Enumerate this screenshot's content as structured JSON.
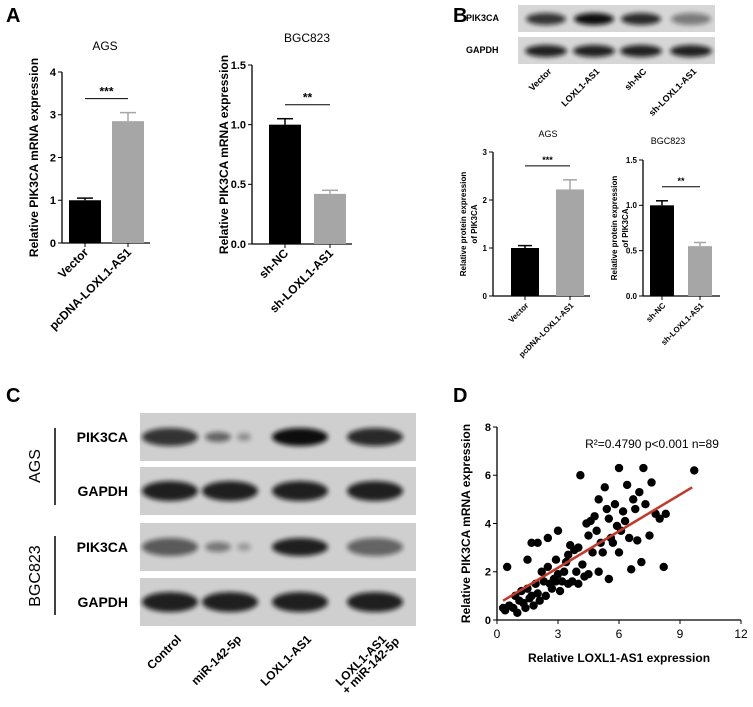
{
  "panel_labels": [
    "A",
    "B",
    "C",
    "D"
  ],
  "blot_b": {
    "rows": [
      "PIK3CA",
      "GAPDH"
    ],
    "lanes": [
      "Vector",
      "LOXL1-AS1",
      "sh-NC",
      "sh-LOXL1-AS1"
    ]
  },
  "blot_c": {
    "groups": [
      "AGS",
      "BGC823"
    ],
    "rows": [
      "PIK3CA",
      "GAPDH",
      "PIK3CA",
      "GAPDH"
    ],
    "lanes": [
      [
        "Control"
      ],
      [
        "miR-142-5p"
      ],
      [
        "LOXL1-AS1"
      ],
      [
        "LOXL1-AS1",
        "+ miR-142-5p"
      ]
    ]
  },
  "chart_data": [
    {
      "type": "bar",
      "title": "AGS",
      "ylabel": [
        "Relative PIK3CA mRNA expression"
      ],
      "categories": [
        "Vector",
        "pcDNA-LOXL1-AS1"
      ],
      "values": [
        1.0,
        2.85
      ],
      "errors": [
        0.05,
        0.2
      ],
      "colors": [
        "#000000",
        "#a6a6a6"
      ],
      "annotation": "***",
      "ylim": [
        0,
        4
      ],
      "yticks": [
        0,
        1,
        2,
        3,
        4
      ]
    },
    {
      "type": "bar",
      "title": "BGC823",
      "ylabel": [
        "Relative PIK3CA mRNA expression"
      ],
      "categories": [
        "sh-NC",
        "sh-LOXL1-AS1"
      ],
      "values": [
        1.0,
        0.42
      ],
      "errors": [
        0.05,
        0.03
      ],
      "colors": [
        "#000000",
        "#a6a6a6"
      ],
      "annotation": "**",
      "ylim": [
        0,
        1.5
      ],
      "yticks": [
        {
          "value": 0,
          "label": "0.0"
        },
        0.5,
        {
          "value": 1,
          "label": "1.0"
        },
        1.5
      ]
    },
    {
      "type": "bar",
      "title": "AGS",
      "ylabel": [
        "Relative protein expression",
        "of PIK3CA"
      ],
      "categories": [
        "Vector",
        "pcDNA-LOXL1-AS1"
      ],
      "values": [
        1.0,
        2.22
      ],
      "errors": [
        0.05,
        0.2
      ],
      "colors": [
        "#000000",
        "#a6a6a6"
      ],
      "annotation": "***",
      "ylim": [
        0,
        3
      ],
      "yticks": [
        0,
        1,
        2,
        3
      ]
    },
    {
      "type": "bar",
      "title": "BGC823",
      "ylabel": [
        "Relative protein expression",
        "of PIK3CA"
      ],
      "categories": [
        "sh-NC",
        "sh-LOXL1-AS1"
      ],
      "values": [
        1.0,
        0.55
      ],
      "errors": [
        0.05,
        0.04
      ],
      "colors": [
        "#000000",
        "#a6a6a6"
      ],
      "annotation": "**",
      "ylim": [
        0,
        1.5
      ],
      "yticks": [
        {
          "value": 0,
          "label": "0.0"
        },
        0.5,
        {
          "value": 1,
          "label": "1.0"
        },
        1.5
      ]
    },
    {
      "type": "scatter",
      "xlabel": "Relative LOXL1-AS1 expression",
      "ylabel": [
        "Relative PIK3CA mRNA expression"
      ],
      "annotation": "R²=0.4790  p<0.001  n=89",
      "color": "#000000",
      "x": [
        0.3,
        0.4,
        0.5,
        0.6,
        0.8,
        0.9,
        1.0,
        1.1,
        1.2,
        1.3,
        1.4,
        1.5,
        1.5,
        1.6,
        1.7,
        1.8,
        1.9,
        2.0,
        2.0,
        2.1,
        2.2,
        2.3,
        2.4,
        2.5,
        2.5,
        2.6,
        2.7,
        2.8,
        2.9,
        3.0,
        3.0,
        3.1,
        3.2,
        3.3,
        3.4,
        3.5,
        3.5,
        3.6,
        3.7,
        3.8,
        3.9,
        4.0,
        4.0,
        4.1,
        4.2,
        4.3,
        4.4,
        4.5,
        4.5,
        4.6,
        4.7,
        4.8,
        4.9,
        5.0,
        5.0,
        5.1,
        5.2,
        5.3,
        5.4,
        5.5,
        5.5,
        5.6,
        5.7,
        5.8,
        5.9,
        6.0,
        6.0,
        6.1,
        6.2,
        6.3,
        6.4,
        6.5,
        6.6,
        6.7,
        6.8,
        6.9,
        7.0,
        7.1,
        7.2,
        7.3,
        7.5,
        7.6,
        7.8,
        8.0,
        8.2,
        8.3,
        2.9,
        1.7,
        9.7
      ],
      "values": [
        0.5,
        0.4,
        2.2,
        0.6,
        0.5,
        1.0,
        0.3,
        0.8,
        1.2,
        0.7,
        0.5,
        1.3,
        2.5,
        0.9,
        1.0,
        0.6,
        1.5,
        3.2,
        1.1,
        0.8,
        2.0,
        1.6,
        1.0,
        3.4,
        2.2,
        1.5,
        1.3,
        1.7,
        2.5,
        1.9,
        3.7,
        1.2,
        1.6,
        2.0,
        2.4,
        2.7,
        1.5,
        3.1,
        1.6,
        2.9,
        2.0,
        3.0,
        1.5,
        6.0,
        2.3,
        1.8,
        4.0,
        3.5,
        1.9,
        4.1,
        2.8,
        4.3,
        3.7,
        5.0,
        2.0,
        3.2,
        2.8,
        5.5,
        4.6,
        4.2,
        1.7,
        3.4,
        3.2,
        4.8,
        3.9,
        6.3,
        2.8,
        3.7,
        4.5,
        4.1,
        5.6,
        3.4,
        2.1,
        5.0,
        4.6,
        3.3,
        5.3,
        2.4,
        6.3,
        4.8,
        3.5,
        5.7,
        4.4,
        4.2,
        2.2,
        4.4,
        1.6,
        3.2,
        6.2
      ],
      "fit_line": {
        "x": [
          0.3,
          9.6
        ],
        "values": [
          0.8,
          5.5
        ],
        "color": "#c0392b"
      },
      "xlim": [
        0,
        12
      ],
      "xticks": [
        0,
        3,
        6,
        9,
        12
      ],
      "ylim": [
        0,
        8
      ],
      "yticks": [
        0,
        2,
        4,
        6,
        8
      ]
    }
  ]
}
